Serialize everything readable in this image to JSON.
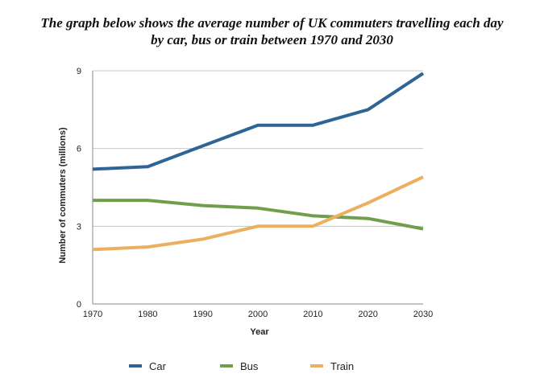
{
  "title": {
    "line1": "The graph below shows the average number of UK commuters travelling each day",
    "line2": "by car, bus or train between 1970 and 2030"
  },
  "chart_data": {
    "type": "line",
    "x": [
      "1970",
      "1980",
      "1990",
      "2000",
      "2010",
      "2020",
      "2030"
    ],
    "xlabel": "Year",
    "ylabel": "Number of commuters (millions)",
    "ylim": [
      0,
      9
    ],
    "yticks": [
      "0",
      "3",
      "6",
      "9"
    ],
    "grid": "horizontal",
    "legend_position": "bottom",
    "series": [
      {
        "name": "Car",
        "color": "#2e6596",
        "values": [
          5.2,
          5.3,
          6.1,
          6.9,
          6.9,
          7.5,
          8.9
        ]
      },
      {
        "name": "Bus",
        "color": "#6f9e4c",
        "values": [
          4.0,
          4.0,
          3.8,
          3.7,
          3.4,
          3.3,
          2.9
        ]
      },
      {
        "name": "Train",
        "color": "#ecaf5f",
        "values": [
          2.1,
          2.2,
          2.5,
          3.0,
          3.0,
          3.9,
          4.9
        ]
      }
    ]
  }
}
